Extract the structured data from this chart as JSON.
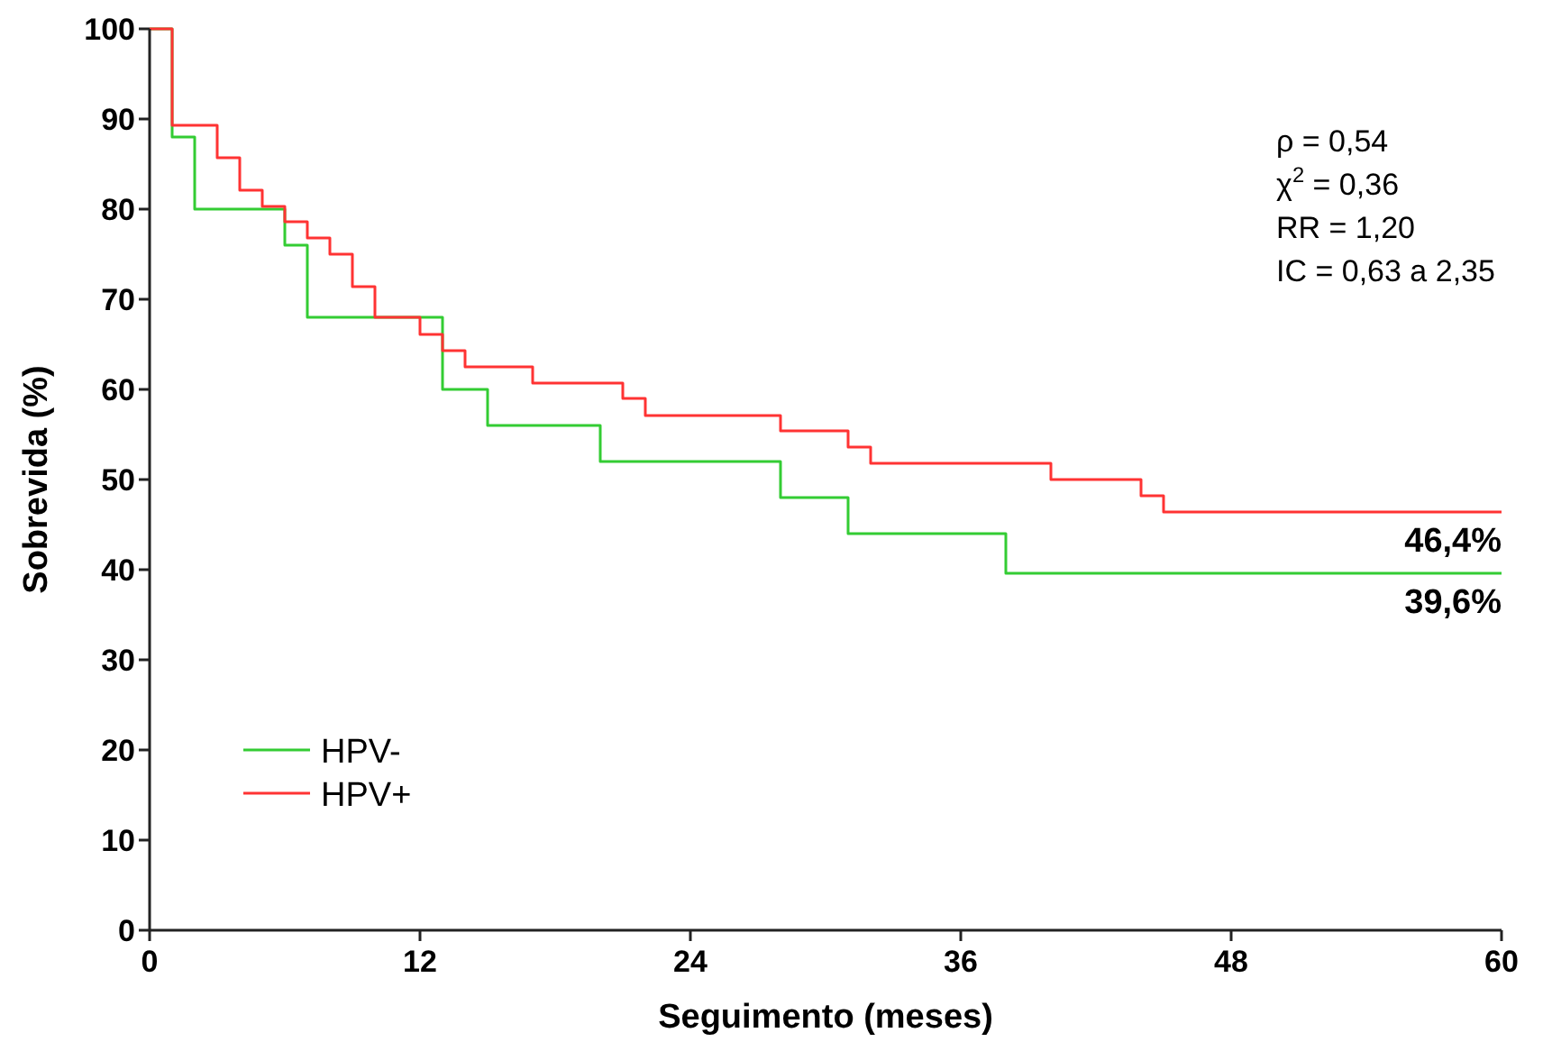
{
  "chart_data": {
    "type": "step",
    "xlabel": "Seguimento (meses)",
    "ylabel": "Sobrevida (%)",
    "xlim": [
      0,
      60
    ],
    "xticks": [
      0,
      12,
      24,
      36,
      48,
      60
    ],
    "ylim": [
      0,
      100
    ],
    "yticks": [
      0,
      10,
      20,
      30,
      40,
      50,
      60,
      70,
      80,
      90,
      100
    ],
    "grid": false,
    "legend": "bottom left",
    "marker": "none",
    "line_style": "solid",
    "series": [
      {
        "name": "HPV-",
        "color": "#33cc33",
        "x": [
          0,
          1,
          2,
          6,
          7,
          13,
          15,
          20,
          28,
          31,
          38,
          60
        ],
        "values": [
          100,
          88,
          80,
          76,
          68,
          60,
          56,
          52,
          48,
          44,
          39.6,
          39.6
        ]
      },
      {
        "name": "HPV+",
        "color": "#ff3333",
        "x": [
          0,
          1,
          3,
          4,
          5,
          6,
          7,
          8,
          9,
          10,
          12,
          13,
          14,
          17,
          21,
          22,
          28,
          31,
          32,
          40,
          44,
          45,
          60
        ],
        "values": [
          100,
          89.3,
          85.7,
          82.1,
          80.3,
          78.6,
          76.8,
          75,
          71.4,
          68,
          66.1,
          64.3,
          62.5,
          60.7,
          59,
          57.1,
          55.4,
          53.6,
          51.8,
          50,
          48.2,
          46.4,
          46.4
        ]
      }
    ],
    "annotations": [
      "ρ = 0,54",
      "χ$^{2}$ = 0,36",
      "RR = 1,20",
      "IC = 0,63 a 2,35",
      {
        "text": "46,4%",
        "x": 60,
        "y": 46.4
      },
      {
        "text": "39,6%",
        "x": 60,
        "y": 39.6
      }
    ]
  }
}
